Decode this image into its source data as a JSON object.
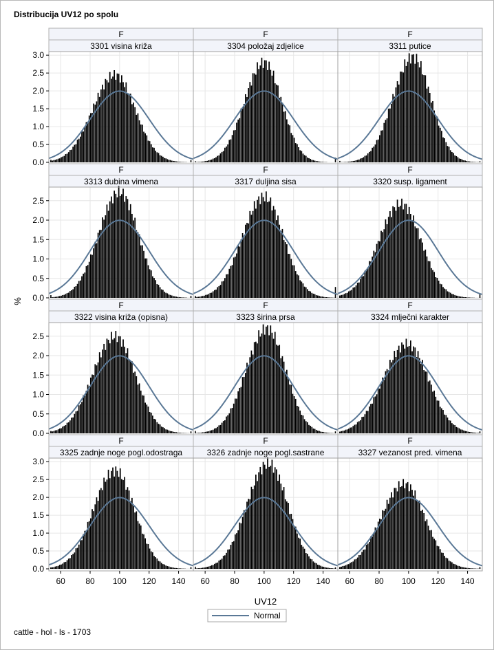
{
  "title": "Distribucija UV12 po spolu",
  "footnote": "cattle - hol - ls - 1703",
  "chart_data": {
    "type": "histogram-panel",
    "xlabel": "UV12",
    "ylabel": "%",
    "xlim": [
      52,
      150
    ],
    "x_ticks": [
      60,
      80,
      100,
      120,
      140
    ],
    "legend": {
      "placement": "bottom-center",
      "entries": [
        "Normal"
      ]
    },
    "colors": {
      "bars": "#000000",
      "normal_curve": "#5a7896",
      "panel_header": "#f2f4fa",
      "grid": "#e6e6e6"
    },
    "normal": {
      "mean": 100,
      "sd": 20
    },
    "rows": [
      {
        "ylim": [
          0,
          3.1
        ],
        "y_ticks": [
          "0.0",
          "0.5",
          "1.0",
          "1.5",
          "2.0",
          "2.5",
          "3.0"
        ]
      },
      {
        "ylim": [
          0,
          2.85
        ],
        "y_ticks": [
          "0.0",
          "0.5",
          "1.0",
          "1.5",
          "2.0",
          "2.5"
        ]
      },
      {
        "ylim": [
          0,
          2.85
        ],
        "y_ticks": [
          "0.0",
          "0.5",
          "1.0",
          "1.5",
          "2.0",
          "2.5"
        ]
      },
      {
        "ylim": [
          0,
          3.1
        ],
        "y_ticks": [
          "0.0",
          "0.5",
          "1.0",
          "1.5",
          "2.0",
          "2.5",
          "3.0"
        ]
      }
    ],
    "panels": [
      {
        "sex": "F",
        "label": "3301 visina križa",
        "peak_x": 97,
        "peak_y": 2.45,
        "sd": 14.5,
        "tail_right": 0.06,
        "tail_left": 0.07
      },
      {
        "sex": "F",
        "label": "3304 položaj zdjelice",
        "peak_x": 100,
        "peak_y": 2.8,
        "sd": 12.7,
        "tail_right": 0.13,
        "tail_left": 0.03
      },
      {
        "sex": "F",
        "label": "3311 putice",
        "peak_x": 103,
        "peak_y": 2.95,
        "sd": 13.0,
        "tail_right": 0.03,
        "tail_left": 0.04
      },
      {
        "sex": "F",
        "label": "3313 dubina vimena",
        "peak_x": 100,
        "peak_y": 2.72,
        "sd": 13.5,
        "tail_right": 0.05,
        "tail_left": 0.07
      },
      {
        "sex": "F",
        "label": "3317 duljina sisa",
        "peak_x": 100,
        "peak_y": 2.6,
        "sd": 14.0,
        "tail_right": 0.28,
        "tail_left": 0.05
      },
      {
        "sex": "F",
        "label": "3320 susp. ligament",
        "peak_x": 95,
        "peak_y": 2.42,
        "sd": 14.5,
        "tail_right": 0.09,
        "tail_left": 0.06
      },
      {
        "sex": "F",
        "label": "3322 visina križa (opisna)",
        "peak_x": 97,
        "peak_y": 2.5,
        "sd": 14.5,
        "tail_right": 0.05,
        "tail_left": 0.06
      },
      {
        "sex": "F",
        "label": "3323 širina prsa",
        "peak_x": 102,
        "peak_y": 2.7,
        "sd": 13.5,
        "tail_right": 0.05,
        "tail_left": 0.06
      },
      {
        "sex": "F",
        "label": "3324 mlječni karakter",
        "peak_x": 99,
        "peak_y": 2.3,
        "sd": 15.5,
        "tail_right": 0.05,
        "tail_left": 0.04
      },
      {
        "sex": "F",
        "label": "3325 zadnje noge pogl.odostraga",
        "peak_x": 97,
        "peak_y": 2.75,
        "sd": 14.0,
        "tail_right": 0.05,
        "tail_left": 0.04
      },
      {
        "sex": "F",
        "label": "3326 zadnje noge pogl.sastrane",
        "peak_x": 103,
        "peak_y": 2.95,
        "sd": 14.0,
        "tail_right": 0.04,
        "tail_left": 0.06
      },
      {
        "sex": "F",
        "label": "3327 vezanost pred. vimena",
        "peak_x": 97,
        "peak_y": 2.38,
        "sd": 15.0,
        "tail_right": 0.05,
        "tail_left": 0.04
      }
    ]
  }
}
